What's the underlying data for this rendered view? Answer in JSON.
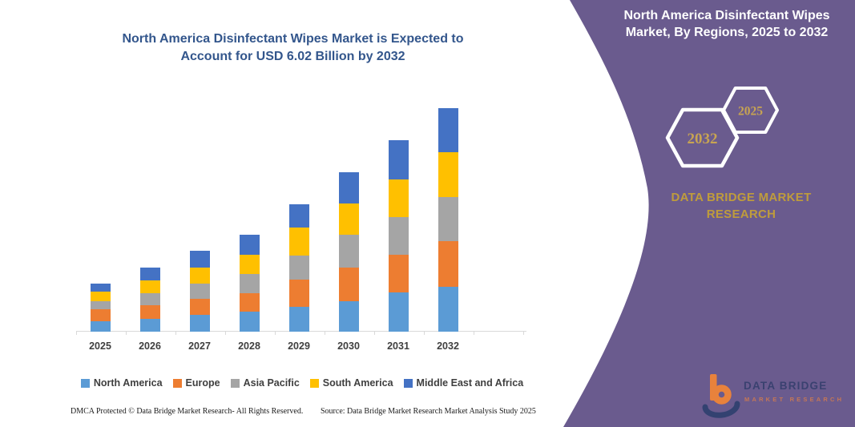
{
  "chart": {
    "title": "North America Disinfectant Wipes Market is Expected to Account for USD 6.02 Billion by 2032"
  },
  "chart_data": {
    "type": "bar",
    "stacked": true,
    "title": "North America Disinfectant Wipes Market is Expected to Account for USD 6.02 Billion by 2032",
    "xlabel": "",
    "ylabel": "",
    "unit": "USD Billion",
    "categories": [
      "2025",
      "2026",
      "2027",
      "2028",
      "2029",
      "2030",
      "2031",
      "2032"
    ],
    "series": [
      {
        "name": "North America",
        "color": "#5B9BD5",
        "values": [
          0.28,
          0.35,
          0.45,
          0.53,
          0.68,
          0.82,
          1.06,
          1.21
        ]
      },
      {
        "name": "Europe",
        "color": "#ED7D31",
        "values": [
          0.32,
          0.36,
          0.43,
          0.5,
          0.73,
          0.9,
          1.01,
          1.23
        ]
      },
      {
        "name": "Asia Pacific",
        "color": "#A5A5A5",
        "values": [
          0.23,
          0.32,
          0.41,
          0.52,
          0.65,
          0.9,
          1.02,
          1.19
        ]
      },
      {
        "name": "South America",
        "color": "#FFC000",
        "values": [
          0.24,
          0.36,
          0.43,
          0.53,
          0.74,
          0.83,
          1.01,
          1.21
        ]
      },
      {
        "name": "Middle East and Africa",
        "color": "#4472C4",
        "values": [
          0.22,
          0.34,
          0.45,
          0.53,
          0.64,
          0.84,
          1.06,
          1.18
        ]
      }
    ],
    "totals": [
      1.29,
      1.73,
      2.17,
      2.61,
      3.44,
      4.29,
      5.16,
      6.02
    ],
    "ylim": [
      0,
      6.02
    ],
    "grid": false,
    "legend_position": "bottom"
  },
  "panel": {
    "title": "North America Disinfectant Wipes Market, By Regions, 2025 to 2032",
    "hexagon_back_year": "2025",
    "hexagon_front_year": "2032",
    "brand_heading": "DATA BRIDGE MARKET RESEARCH",
    "background_color": "#6A5B8E",
    "gold_color": "#C8A452"
  },
  "logo": {
    "line1": "DATA BRIDGE",
    "line2": "MARKET RESEARCH"
  },
  "footer": {
    "left": "DMCA Protected © Data Bridge Market Research-  All Rights Reserved.",
    "right": "Source: Data Bridge Market Research  Market Analysis Study 2025"
  }
}
